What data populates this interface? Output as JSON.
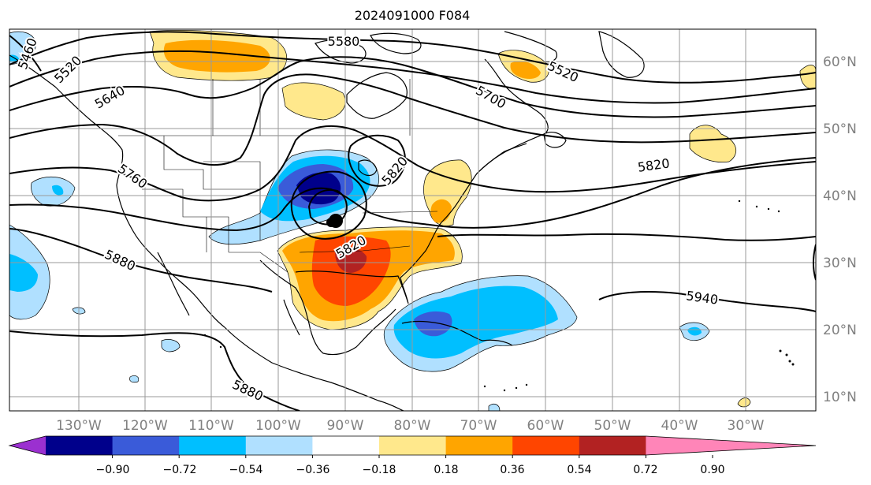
{
  "title": "2024091000 F084",
  "longitude_labels": [
    "130°W",
    "120°W",
    "110°W",
    "100°W",
    "90°W",
    "80°W",
    "70°W",
    "60°W",
    "50°W",
    "40°W",
    "30°W"
  ],
  "latitude_labels": [
    "60°N",
    "50°N",
    "40°N",
    "30°N",
    "20°N",
    "10°N"
  ],
  "contour_labels": [
    "5460",
    "5520",
    "5580",
    "5520",
    "5640",
    "5700",
    "5760",
    "5820",
    "5880",
    "5820",
    "5940",
    "5880",
    "5820"
  ],
  "colorbar": {
    "tick_labels": [
      "−0.90",
      "−0.72",
      "−0.54",
      "−0.36",
      "−0.18",
      "0.18",
      "0.36",
      "0.54",
      "0.72",
      "0.90"
    ],
    "colors": [
      "#9b30d0",
      "#00008b",
      "#3a5bd9",
      "#00bfff",
      "#b0e0ff",
      "#ffffff",
      "#ffe88c",
      "#ffa500",
      "#ff4500",
      "#b22222",
      "#ff85b8"
    ]
  },
  "colors": {
    "grid": "#9a9a9a",
    "lat_label": "#808080",
    "contour": "#000000",
    "coast": "#000000"
  }
}
